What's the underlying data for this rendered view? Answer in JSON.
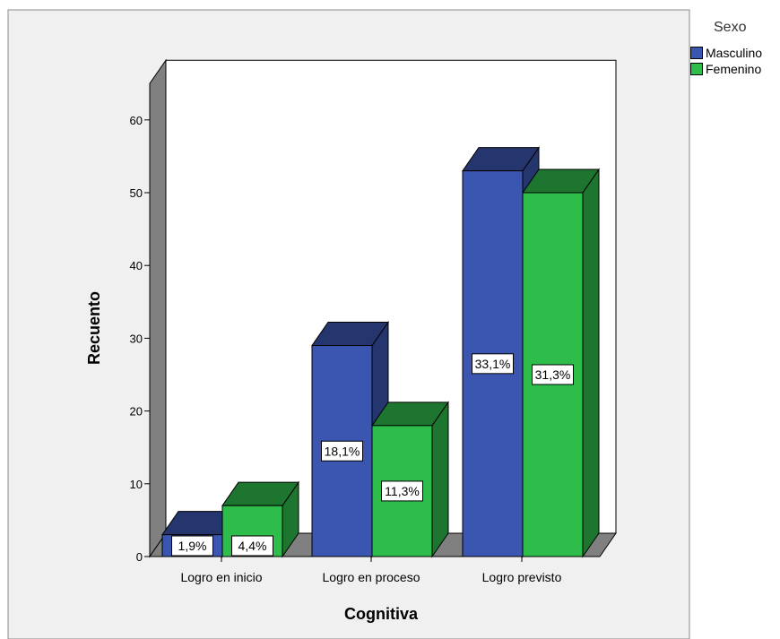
{
  "chart_data": {
    "type": "bar",
    "xlabel": "Cognitiva",
    "ylabel": "Recuento",
    "categories": [
      "Logro en inicio",
      "Logro en proceso",
      "Logro previsto"
    ],
    "ylim": [
      0,
      65
    ],
    "yticks": [
      0,
      10,
      20,
      30,
      40,
      50,
      60
    ],
    "legend": {
      "title": "Sexo",
      "position": "top-right"
    },
    "series": [
      {
        "name": "Masculino",
        "color": "#3b56b0",
        "values": [
          3,
          29,
          53
        ],
        "labels": [
          "1,9%",
          "18,1%",
          "33,1%"
        ]
      },
      {
        "name": "Femenino",
        "color": "#2ebc4b",
        "values": [
          7,
          18,
          50
        ],
        "labels": [
          "4,4%",
          "11,3%",
          "31,3%"
        ]
      }
    ]
  }
}
